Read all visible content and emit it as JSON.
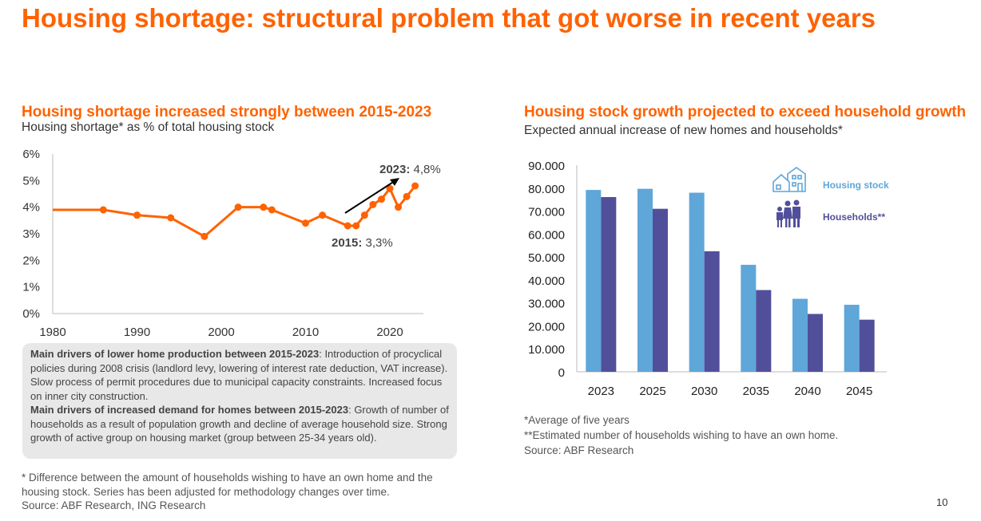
{
  "title": "Housing shortage: structural problem that got worse in recent years",
  "page_number": "10",
  "colors": {
    "accent": "#ff6200",
    "housing_stock": "#5fa6d9",
    "households": "#524f9a"
  },
  "left": {
    "title": "Housing shortage increased strongly between 2015-2023",
    "subtitle": "Housing shortage* as % of total housing stock",
    "box": {
      "h1": "Main drivers of lower home production between 2015-2023",
      "t1": ": Introduction of procyclical policies during 2008 crisis (landlord levy, lowering of interest rate deduction, VAT increase). Slow process of permit procedures due to municipal capacity constraints. Increased focus on inner city construction.",
      "h2": "Main drivers of increased demand for homes between 2015-2023",
      "t2": ": Growth of number of households as a result of population growth and decline of average household size. Strong growth of active group on housing market (group between 25-34 years old)."
    },
    "foot1": "* Difference between the  amount of households wishing to have an own home and the housing stock. Series has been adjusted for methodology changes over time.",
    "foot2": "Source: ABF Research, ING Research"
  },
  "right": {
    "title": "Housing stock growth projected to exceed household growth",
    "subtitle": "Expected annual increase of new homes and households*",
    "foot1": "*Average of five years",
    "foot2": "**Estimated number of households wishing to have an own home.",
    "foot3": "Source: ABF Research"
  },
  "chart_data": [
    {
      "type": "line",
      "title": "Housing shortage increased strongly between 2015-2023",
      "ylabel": "Housing shortage as % of total housing stock",
      "ylim": [
        0,
        6
      ],
      "xlim": [
        1980,
        2024
      ],
      "yticks": [
        "0%",
        "1%",
        "2%",
        "3%",
        "4%",
        "5%",
        "6%"
      ],
      "xticks": [
        "1980",
        "1990",
        "2000",
        "2010",
        "2020"
      ],
      "x": [
        1980,
        1986,
        1990,
        1994,
        1998,
        2002,
        2005,
        2006,
        2010,
        2012,
        2015,
        2016,
        2017,
        2018,
        2019,
        2020,
        2021,
        2022,
        2023
      ],
      "values": [
        3.9,
        3.9,
        3.7,
        3.6,
        2.9,
        4.0,
        4.0,
        3.9,
        3.4,
        3.7,
        3.3,
        3.3,
        3.7,
        4.1,
        4.3,
        4.7,
        4.0,
        4.4,
        4.8
      ],
      "annotations": [
        {
          "year_label": "2023:",
          "value_label": "4,8%"
        },
        {
          "year_label": "2015:",
          "value_label": "3,3%"
        }
      ]
    },
    {
      "type": "bar",
      "title": "Housing stock growth projected to exceed household growth",
      "ylim": [
        0,
        90000
      ],
      "yticks": [
        "0",
        "10.000",
        "20.000",
        "30.000",
        "40.000",
        "50.000",
        "60.000",
        "70.000",
        "80.000",
        "90.000"
      ],
      "categories": [
        "2023",
        "2025",
        "2030",
        "2035",
        "2040",
        "2045"
      ],
      "series": [
        {
          "name": "Housing stock",
          "values": [
            79200,
            79700,
            78000,
            46600,
            31800,
            29200
          ]
        },
        {
          "name": "Households**",
          "values": [
            76100,
            71000,
            52500,
            35600,
            25200,
            22700
          ]
        }
      ]
    }
  ]
}
